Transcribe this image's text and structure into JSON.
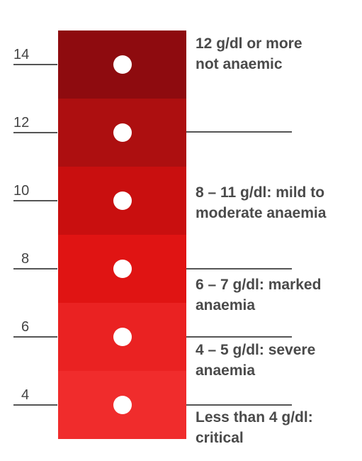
{
  "scale": {
    "segments": [
      {
        "color": "#8e0b0f"
      },
      {
        "color": "#ad0f10"
      },
      {
        "color": "#c90f0f"
      },
      {
        "color": "#e01413"
      },
      {
        "color": "#ea2222"
      },
      {
        "color": "#f02c2c"
      }
    ],
    "ticks": [
      "14",
      "12",
      "10",
      "8",
      "6",
      "4"
    ],
    "descriptions": [
      {
        "line1": "12 g/dl or more",
        "line2": "not anaemic"
      },
      {
        "line1": "8 – 11 g/dl: mild to",
        "line2": "moderate anaemia"
      },
      {
        "line1": "6 – 7 g/dl: marked",
        "line2": "anaemia"
      },
      {
        "line1": "4 – 5 g/dl: severe",
        "line2": "anaemia"
      },
      {
        "line1": "Less than 4 g/dl:",
        "line2": "critical"
      }
    ]
  }
}
